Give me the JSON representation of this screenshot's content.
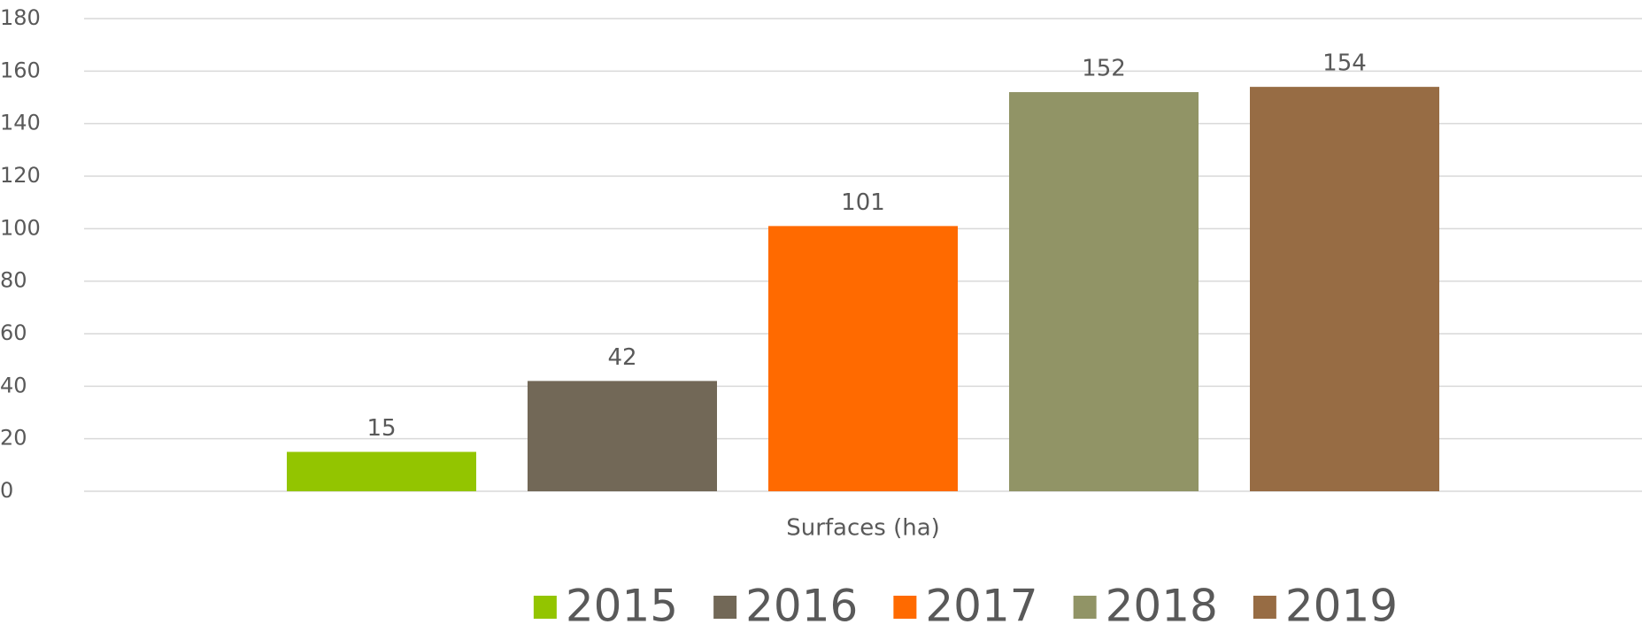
{
  "chart_data": {
    "type": "bar",
    "categories": [
      "Surfaces (ha)"
    ],
    "series": [
      {
        "name": "2015",
        "color": "#93c500",
        "values": [
          15
        ]
      },
      {
        "name": "2016",
        "color": "#726857",
        "values": [
          42
        ]
      },
      {
        "name": "2017",
        "color": "#ff6a00",
        "values": [
          101
        ]
      },
      {
        "name": "2018",
        "color": "#919466",
        "values": [
          152
        ]
      },
      {
        "name": "2019",
        "color": "#976c44",
        "values": [
          154
        ]
      }
    ],
    "ylim": [
      0,
      180
    ],
    "yticks": [
      0,
      20,
      40,
      60,
      80,
      100,
      120,
      140,
      160,
      180
    ],
    "grid": true,
    "legend": "bottom",
    "data_labels": true
  }
}
